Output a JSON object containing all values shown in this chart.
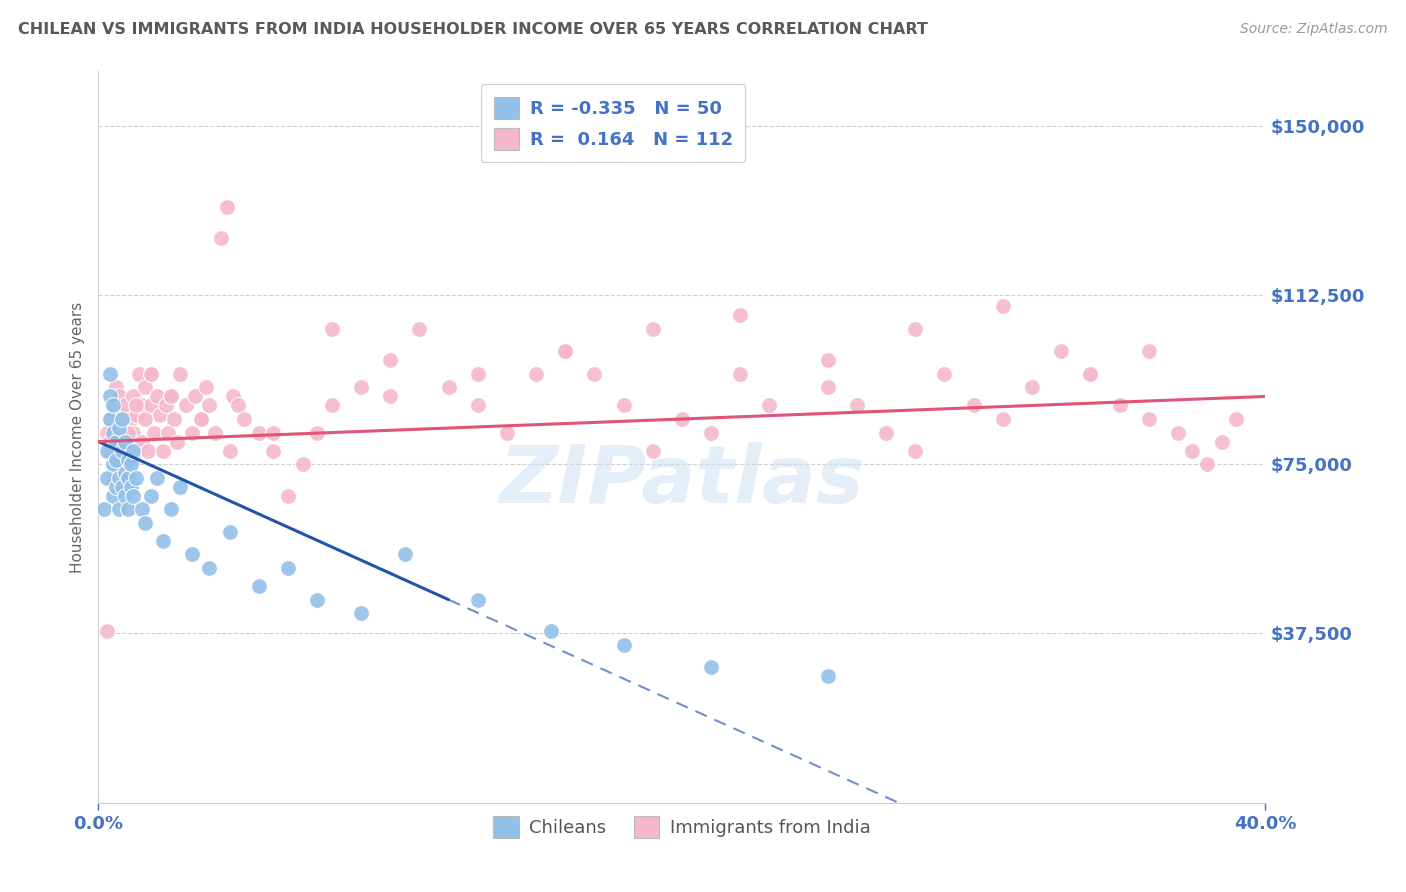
{
  "title": "CHILEAN VS IMMIGRANTS FROM INDIA HOUSEHOLDER INCOME OVER 65 YEARS CORRELATION CHART",
  "source": "Source: ZipAtlas.com",
  "ylabel": "Householder Income Over 65 years",
  "ytick_labels": [
    "$37,500",
    "$75,000",
    "$112,500",
    "$150,000"
  ],
  "ytick_values": [
    37500,
    75000,
    112500,
    150000
  ],
  "ymin": 0,
  "ymax": 162000,
  "xmin": 0.0,
  "xmax": 0.4,
  "title_color": "#595959",
  "source_color": "#999999",
  "ytick_color": "#4472c4",
  "xtick_color": "#4472c4",
  "grid_color": "#d0d0d0",
  "chilean_color": "#92c0e8",
  "india_color": "#f5b8cb",
  "chilean_line_color": "#2255aa",
  "india_line_color": "#e05575",
  "watermark": "ZIPatlas",
  "chilean_points_x": [
    0.002,
    0.003,
    0.003,
    0.004,
    0.004,
    0.004,
    0.005,
    0.005,
    0.005,
    0.005,
    0.006,
    0.006,
    0.006,
    0.007,
    0.007,
    0.007,
    0.008,
    0.008,
    0.008,
    0.009,
    0.009,
    0.009,
    0.01,
    0.01,
    0.01,
    0.011,
    0.011,
    0.012,
    0.012,
    0.013,
    0.015,
    0.016,
    0.018,
    0.02,
    0.022,
    0.025,
    0.028,
    0.032,
    0.038,
    0.045,
    0.055,
    0.065,
    0.075,
    0.09,
    0.105,
    0.13,
    0.155,
    0.18,
    0.21,
    0.25
  ],
  "chilean_points_y": [
    65000,
    78000,
    72000,
    85000,
    90000,
    95000,
    75000,
    82000,
    68000,
    88000,
    80000,
    76000,
    70000,
    83000,
    72000,
    65000,
    78000,
    85000,
    70000,
    73000,
    80000,
    68000,
    76000,
    72000,
    65000,
    70000,
    75000,
    68000,
    78000,
    72000,
    65000,
    62000,
    68000,
    72000,
    58000,
    65000,
    70000,
    55000,
    52000,
    60000,
    48000,
    52000,
    45000,
    42000,
    55000,
    45000,
    38000,
    35000,
    30000,
    28000
  ],
  "india_points_x": [
    0.003,
    0.004,
    0.005,
    0.005,
    0.006,
    0.006,
    0.007,
    0.007,
    0.008,
    0.008,
    0.009,
    0.009,
    0.01,
    0.01,
    0.011,
    0.011,
    0.012,
    0.012,
    0.013,
    0.013,
    0.014,
    0.015,
    0.015,
    0.016,
    0.016,
    0.017,
    0.018,
    0.018,
    0.019,
    0.02,
    0.021,
    0.022,
    0.023,
    0.024,
    0.025,
    0.026,
    0.027,
    0.028,
    0.03,
    0.032,
    0.033,
    0.035,
    0.037,
    0.038,
    0.04,
    0.042,
    0.044,
    0.046,
    0.048,
    0.05,
    0.055,
    0.06,
    0.065,
    0.07,
    0.075,
    0.08,
    0.09,
    0.1,
    0.11,
    0.12,
    0.13,
    0.14,
    0.15,
    0.16,
    0.17,
    0.18,
    0.19,
    0.2,
    0.21,
    0.22,
    0.23,
    0.25,
    0.26,
    0.27,
    0.28,
    0.29,
    0.3,
    0.31,
    0.32,
    0.33,
    0.34,
    0.35,
    0.36,
    0.37,
    0.375,
    0.38,
    0.385,
    0.39,
    0.36,
    0.34,
    0.31,
    0.28,
    0.25,
    0.22,
    0.19,
    0.16,
    0.13,
    0.1,
    0.08,
    0.06,
    0.045,
    0.035,
    0.025,
    0.018,
    0.013,
    0.01,
    0.008,
    0.006,
    0.005,
    0.004,
    0.003,
    0.004
  ],
  "india_points_y": [
    82000,
    78000,
    75000,
    88000,
    92000,
    85000,
    90000,
    80000,
    86000,
    78000,
    72000,
    88000,
    80000,
    76000,
    85000,
    70000,
    90000,
    82000,
    78000,
    86000,
    95000,
    88000,
    80000,
    92000,
    85000,
    78000,
    95000,
    88000,
    82000,
    90000,
    86000,
    78000,
    88000,
    82000,
    90000,
    85000,
    80000,
    95000,
    88000,
    82000,
    90000,
    85000,
    92000,
    88000,
    82000,
    125000,
    132000,
    90000,
    88000,
    85000,
    82000,
    78000,
    68000,
    75000,
    82000,
    105000,
    92000,
    98000,
    105000,
    92000,
    88000,
    82000,
    95000,
    100000,
    95000,
    88000,
    78000,
    85000,
    82000,
    95000,
    88000,
    92000,
    88000,
    82000,
    78000,
    95000,
    88000,
    85000,
    92000,
    100000,
    95000,
    88000,
    85000,
    82000,
    78000,
    75000,
    80000,
    85000,
    100000,
    95000,
    110000,
    105000,
    98000,
    108000,
    105000,
    100000,
    95000,
    90000,
    88000,
    82000,
    78000,
    85000,
    90000,
    95000,
    88000,
    82000,
    78000,
    75000,
    72000,
    80000,
    38000,
    85000
  ]
}
